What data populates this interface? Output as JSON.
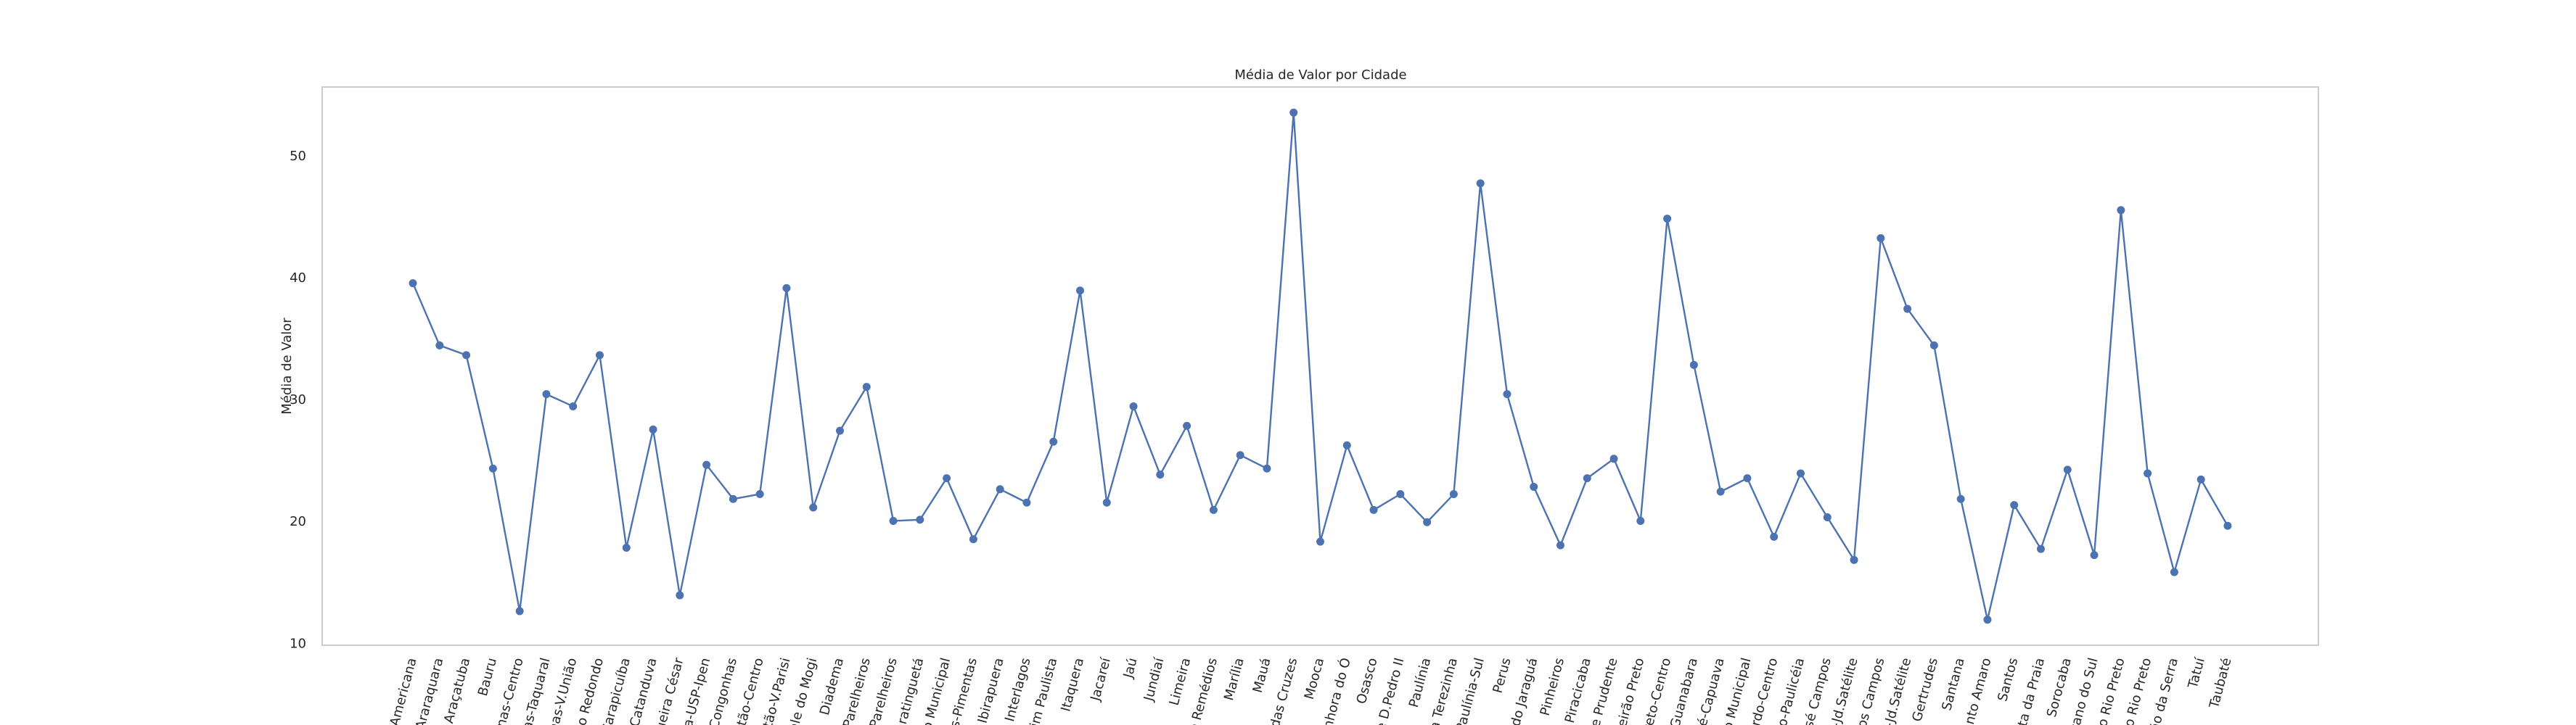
{
  "chart_data": {
    "type": "line",
    "title": "Média de Valor por Cidade",
    "y_label": "Média de Valor",
    "categories": [
      "Americana",
      "Araraquara",
      "Araçatuba",
      "Bauru",
      "pinas-Centro",
      "nas-Taquaral",
      "nas-V.União",
      "ão Redondo",
      "Carapicuíba",
      "Catanduva",
      "queira César",
      "ria-USP-Ipen",
      "Congonhas",
      "batão-Centro",
      "batão-V.Parisi",
      "Vale do Mogi",
      "Diadema",
      "-Parelheiros",
      "i-Parelheiros",
      "uaratinguetá",
      "ço Municipal",
      "os-Pimentas",
      "Ibirapuera",
      "Interlagos",
      "taim Paulista",
      "Itaquera",
      "Jacareí",
      "Jaú",
      "Jundiaí",
      "Limeira",
      "te Remédios",
      "Marília",
      "Mauá",
      "i das Cruzes",
      "Mooca",
      "Senhora do Ó",
      "Osasco",
      "ue D.Pedro II",
      "Paulínia",
      "Sta Terezinha",
      "Paulínia-Sul",
      "Perus",
      "o do Jaraguá",
      "Pinheiros",
      "Piracicaba",
      "ente Prudente",
      "beirão Preto",
      "Preto-Centro",
      "d.Guanabara",
      "dré-Capuava",
      "ço Municipal",
      "nardo-Centro",
      "rdo-Paulicéia",
      "José Campos",
      "s-Jd.Satélite",
      "dos Campos",
      "os-Jd.Satélite",
      "ta Gertrudes",
      "Santana",
      "Santo Amaro",
      "Santos",
      "nta da Praia",
      "Sorocaba",
      "etano do Sul",
      "Do Rio Preto",
      "do Rio Preto",
      "oão da Serra",
      "Tatuí",
      "Taubaté"
    ],
    "series": [
      {
        "name": "Média de Valor",
        "color": "#4c72b0",
        "values": [
          39.6,
          34.5,
          33.7,
          24.4,
          12.7,
          30.5,
          29.5,
          33.7,
          17.9,
          27.6,
          14.0,
          24.7,
          21.9,
          22.3,
          39.2,
          21.2,
          27.5,
          31.1,
          20.1,
          20.2,
          23.6,
          18.6,
          22.7,
          21.6,
          26.6,
          39.0,
          21.6,
          29.5,
          23.9,
          27.9,
          21.0,
          25.5,
          24.4,
          53.6,
          18.4,
          26.3,
          21.0,
          22.3,
          20.0,
          22.3,
          47.8,
          30.5,
          22.9,
          18.1,
          23.6,
          25.2,
          20.1,
          44.9,
          32.9,
          22.5,
          23.6,
          18.8,
          24.0,
          20.4,
          16.9,
          43.3,
          37.5,
          34.5,
          21.9,
          12.0,
          21.4,
          17.8,
          24.3,
          17.3,
          45.6,
          24.0,
          15.9,
          23.5,
          19.7
        ]
      }
    ],
    "ylim": [
      9.9,
      55.7
    ],
    "yticks": [
      10,
      20,
      30,
      40,
      50
    ],
    "grid": false
  }
}
